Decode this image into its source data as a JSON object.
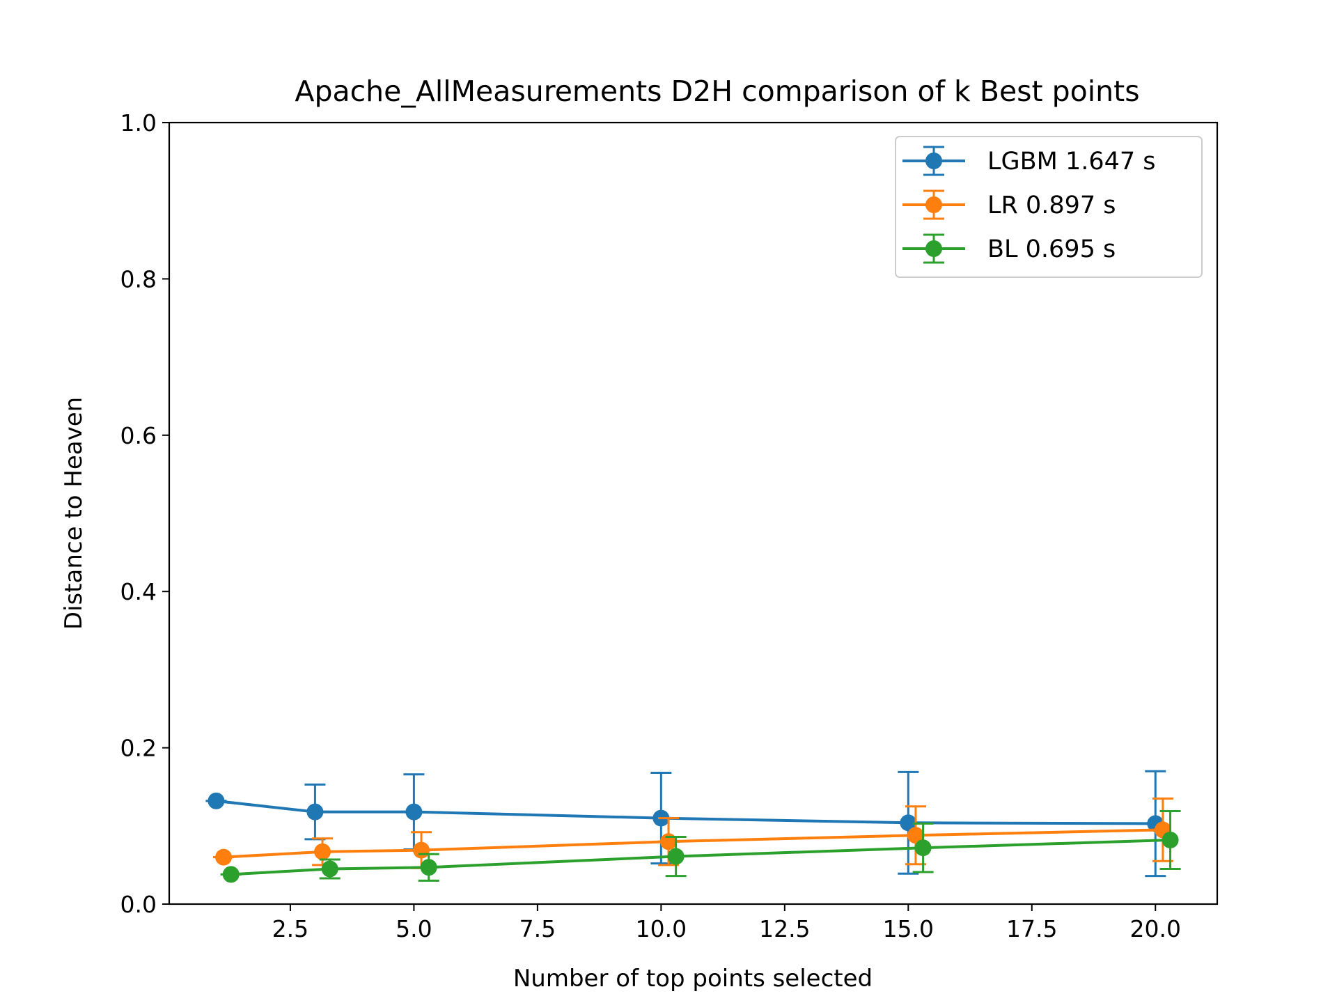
{
  "chart_data": {
    "type": "line",
    "title": "Apache_AllMeasurements D2H comparison of k Best points",
    "xlabel": "Number of top points selected",
    "ylabel": "Distance to Heaven",
    "xlim": [
      0.05,
      21.25
    ],
    "ylim": [
      0.0,
      1.0
    ],
    "xticks": [
      2.5,
      5.0,
      7.5,
      10.0,
      12.5,
      15.0,
      17.5,
      20.0
    ],
    "xtick_labels": [
      "2.5",
      "5.0",
      "7.5",
      "10.0",
      "12.5",
      "15.0",
      "17.5",
      "20.0"
    ],
    "yticks": [
      0.0,
      0.2,
      0.4,
      0.6,
      0.8,
      1.0
    ],
    "ytick_labels": [
      "0.0",
      "0.2",
      "0.4",
      "0.6",
      "0.8",
      "1.0"
    ],
    "grid": false,
    "legend_position": "top-right",
    "series": [
      {
        "name": "LGBM 1.647 s",
        "color": "#1f77b4",
        "x": [
          1.0,
          3.0,
          5.0,
          10.0,
          15.0,
          20.0
        ],
        "y": [
          0.132,
          0.118,
          0.118,
          0.11,
          0.104,
          0.103
        ],
        "err": [
          0.0,
          0.035,
          0.048,
          0.058,
          0.065,
          0.067
        ]
      },
      {
        "name": "LR 0.897 s",
        "color": "#ff7f0e",
        "x": [
          1.15,
          3.15,
          5.15,
          10.15,
          15.15,
          20.15
        ],
        "y": [
          0.06,
          0.067,
          0.069,
          0.08,
          0.088,
          0.095
        ],
        "err": [
          0.0,
          0.017,
          0.023,
          0.03,
          0.037,
          0.04
        ]
      },
      {
        "name": "BL 0.695 s",
        "color": "#2ca02c",
        "x": [
          1.3,
          3.3,
          5.3,
          10.3,
          15.3,
          20.3
        ],
        "y": [
          0.038,
          0.045,
          0.047,
          0.061,
          0.072,
          0.082
        ],
        "err": [
          0.0,
          0.012,
          0.017,
          0.025,
          0.031,
          0.037
        ]
      }
    ]
  }
}
